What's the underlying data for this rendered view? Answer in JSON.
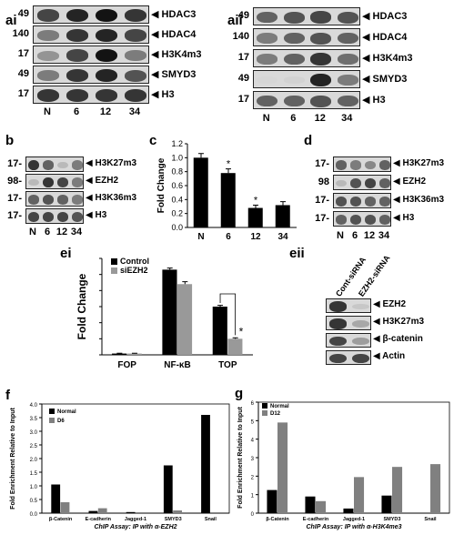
{
  "panels": {
    "ai": {
      "label": "ai",
      "rows": [
        {
          "mw": "49",
          "name": "HDAC3",
          "bands": [
            0.8,
            0.9,
            0.95,
            0.85
          ]
        },
        {
          "mw": "140",
          "name": "HDAC4",
          "bands": [
            0.6,
            0.85,
            0.9,
            0.8
          ]
        },
        {
          "mw": "17",
          "name": "H3K4m3",
          "bands": [
            0.5,
            0.8,
            0.95,
            0.6
          ]
        },
        {
          "mw": "49",
          "name": "SMYD3",
          "bands": [
            0.6,
            0.85,
            0.9,
            0.75
          ]
        },
        {
          "mw": "17",
          "name": "H3",
          "bands": [
            0.85,
            0.85,
            0.85,
            0.85
          ]
        }
      ],
      "lanes": [
        "N",
        "6",
        "12",
        "34"
      ]
    },
    "aii": {
      "label": "aii",
      "rows": [
        {
          "mw": "49",
          "name": "HDAC3",
          "bands": [
            0.7,
            0.75,
            0.8,
            0.75
          ]
        },
        {
          "mw": "140",
          "name": "HDAC4",
          "bands": [
            0.6,
            0.7,
            0.75,
            0.7
          ]
        },
        {
          "mw": "17",
          "name": "H3K4m3",
          "bands": [
            0.6,
            0.7,
            0.85,
            0.65
          ]
        },
        {
          "mw": "49",
          "name": "SMYD3",
          "bands": [
            0.05,
            0.1,
            0.9,
            0.6
          ]
        },
        {
          "mw": "17",
          "name": "H3",
          "bands": [
            0.7,
            0.7,
            0.75,
            0.7
          ]
        }
      ],
      "lanes": [
        "N",
        "6",
        "12",
        "34"
      ]
    },
    "b": {
      "label": "b",
      "rows": [
        {
          "mw": "17-",
          "name": "H3K27m3",
          "bands": [
            0.85,
            0.7,
            0.3,
            0.6
          ]
        },
        {
          "mw": "98-",
          "name": "EZH2",
          "bands": [
            0.3,
            0.85,
            0.8,
            0.6
          ]
        },
        {
          "mw": "17-",
          "name": "H3K36m3",
          "bands": [
            0.7,
            0.75,
            0.7,
            0.6
          ]
        },
        {
          "mw": "17-",
          "name": "H3",
          "bands": [
            0.8,
            0.8,
            0.8,
            0.75
          ]
        }
      ],
      "lanes": [
        "N",
        "6",
        "12",
        "34"
      ]
    },
    "d": {
      "label": "d",
      "rows": [
        {
          "mw": "17-",
          "name": "H3K27m3",
          "bands": [
            0.7,
            0.6,
            0.55,
            0.7
          ]
        },
        {
          "mw": "98",
          "name": "EZH2",
          "bands": [
            0.3,
            0.75,
            0.8,
            0.7
          ]
        },
        {
          "mw": "17-",
          "name": "H3K36m3",
          "bands": [
            0.75,
            0.75,
            0.7,
            0.7
          ]
        },
        {
          "mw": "17-",
          "name": "H3",
          "bands": [
            0.7,
            0.75,
            0.75,
            0.7
          ]
        }
      ],
      "lanes": [
        "N",
        "6",
        "12",
        "34"
      ]
    },
    "eii": {
      "label": "eii",
      "columns": [
        "Cont-siRNA",
        "EZH2-siRNA"
      ],
      "rows": [
        {
          "name": "EZH2",
          "bands": [
            0.85,
            0.2
          ]
        },
        {
          "name": "H3K27m3",
          "bands": [
            0.85,
            0.4
          ]
        },
        {
          "name": "β-catenin",
          "bands": [
            0.8,
            0.45
          ]
        },
        {
          "name": "Actin",
          "bands": [
            0.8,
            0.8
          ]
        }
      ]
    },
    "c": {
      "label": "c"
    },
    "ei": {
      "label": "ei"
    },
    "f": {
      "label": "f"
    },
    "g": {
      "label": "g"
    }
  },
  "chart_data": [
    {
      "id": "c",
      "type": "bar",
      "categories": [
        "N",
        "6",
        "12",
        "34"
      ],
      "values": [
        1.0,
        0.78,
        0.28,
        0.32
      ],
      "errors": [
        0.06,
        0.06,
        0.04,
        0.05
      ],
      "significance": [
        "",
        "*",
        "*",
        ""
      ],
      "ylabel": "Fold Change",
      "ylim": [
        0,
        1.2
      ],
      "yticks": [
        "0.0",
        "0.2",
        "0.4",
        "0.6",
        "0.8",
        "1.0",
        "1.2"
      ],
      "color": "#000000"
    },
    {
      "id": "ei",
      "type": "bar",
      "categories": [
        "FOP",
        "NF-κB",
        "TOP"
      ],
      "series": [
        {
          "name": "Control",
          "values": [
            8,
            530,
            300
          ],
          "errors": [
            2,
            10,
            8
          ],
          "color": "#000000"
        },
        {
          "name": "siEZH2",
          "values": [
            8,
            440,
            100
          ],
          "errors": [
            2,
            15,
            6
          ],
          "color": "#999999"
        }
      ],
      "ylabel": "Fold Change",
      "ylim": [
        0,
        600
      ],
      "yticks": [
        "0",
        "100",
        "200",
        "300",
        "400",
        "500",
        "600"
      ],
      "significance_label": "*",
      "legend": "top-left"
    },
    {
      "id": "f",
      "type": "bar",
      "categories": [
        "β-Catenin",
        "E-cadherin",
        "Jagged-1",
        "SMYD3",
        "Snail"
      ],
      "series": [
        {
          "name": "Normal",
          "values": [
            1.05,
            0.08,
            0.04,
            1.75,
            3.6
          ],
          "color": "#000000"
        },
        {
          "name": "D6",
          "values": [
            0.4,
            0.18,
            0.0,
            0.1,
            0.0
          ],
          "color": "#808080"
        }
      ],
      "ylabel": "Fold Enrichment Relative to Input",
      "xlabel": "ChIP Assay: IP with α-EZH2",
      "ylim": [
        0,
        4.0
      ],
      "yticks": [
        "0.0",
        "0.5",
        "1.0",
        "1.5",
        "2.0",
        "2.5",
        "3.0",
        "3.5",
        "4.0"
      ],
      "legend": "top-left"
    },
    {
      "id": "g",
      "type": "bar",
      "categories": [
        "β-Catenin",
        "E-cadherin",
        "Jagged-1",
        "SMYD3",
        "Snail"
      ],
      "series": [
        {
          "name": "Normal",
          "values": [
            1.25,
            0.9,
            0.25,
            0.95,
            0.0
          ],
          "color": "#000000"
        },
        {
          "name": "D12",
          "values": [
            4.9,
            0.65,
            1.95,
            2.5,
            2.65
          ],
          "color": "#808080"
        }
      ],
      "ylabel": "Fold Enrichment Relative to Input",
      "xlabel": "ChIP Assay: IP with α-H3K4me3",
      "ylim": [
        0,
        6
      ],
      "yticks": [
        "0",
        "1",
        "2",
        "3",
        "4",
        "5",
        "6"
      ],
      "legend": "top-left"
    }
  ]
}
